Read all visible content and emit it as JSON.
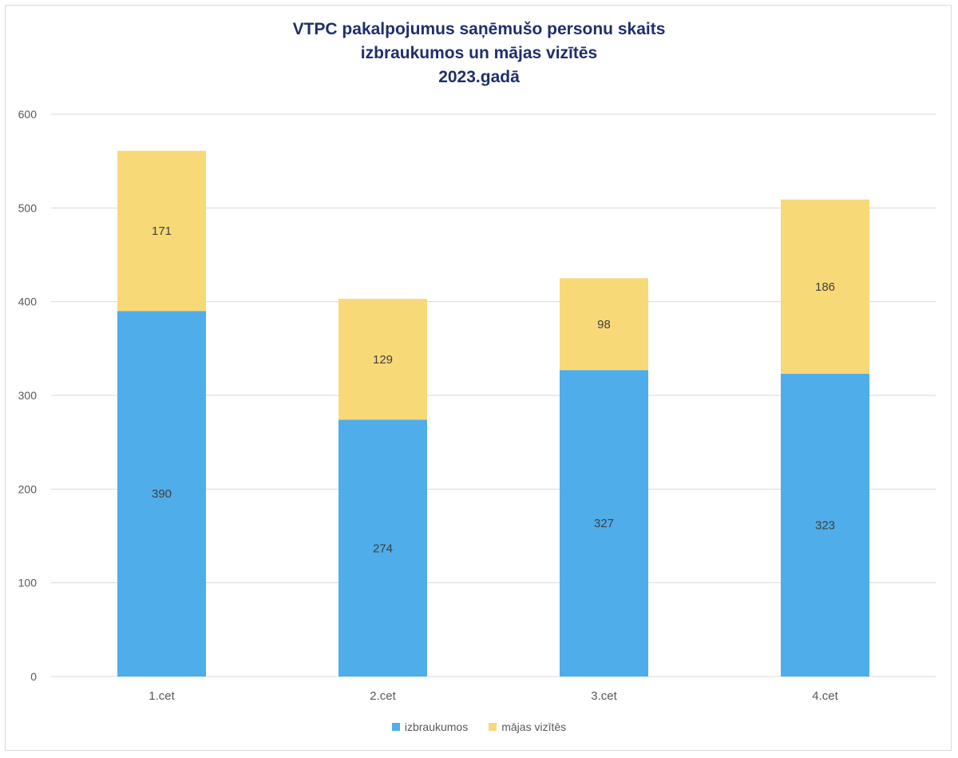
{
  "chart_data": {
    "type": "bar",
    "stacked": true,
    "title_lines": [
      "VTPC pakalpojumus saņēmušo personu skaits",
      "izbraukumos un mājas vizītēs",
      "2023.gadā"
    ],
    "categories": [
      "1.cet",
      "2.cet",
      "3.cet",
      "4.cet"
    ],
    "series": [
      {
        "name": "izbraukumos",
        "values": [
          390,
          274,
          327,
          323
        ],
        "color": "#4FADEA"
      },
      {
        "name": "mājas vizītēs",
        "values": [
          171,
          129,
          98,
          186
        ],
        "color": "#F8D978"
      }
    ],
    "ylim": [
      0,
      600
    ],
    "yticks": [
      0,
      100,
      200,
      300,
      400,
      500,
      600
    ],
    "grid": true,
    "legend_position": "bottom",
    "colors": {
      "grid": "#d9d9d9",
      "tick_text": "#595959",
      "data_label": "#404040",
      "title": "#1f2f6b"
    }
  }
}
